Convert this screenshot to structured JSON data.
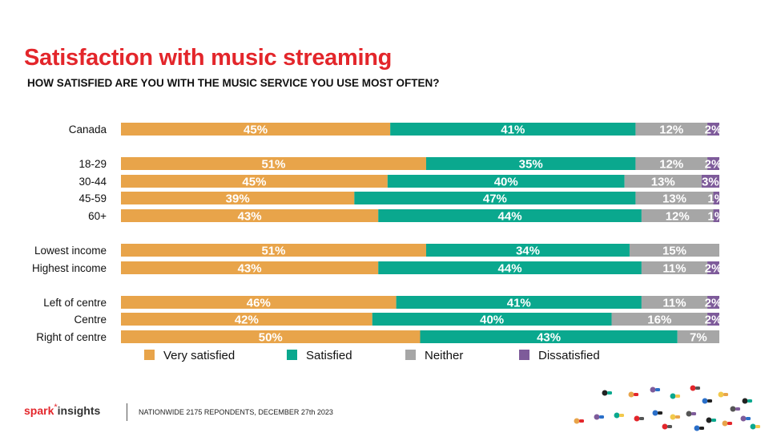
{
  "title": "Satisfaction with music streaming",
  "subtitle": "HOW SATISFIED ARE YOU WITH THE MUSIC SERVICE YOU USE MOST OFTEN?",
  "footer_note": "NATIONWIDE 2175 REPONDENTS, DECEMBER 27th 2023",
  "logo": {
    "spark": "spark",
    "star": "*",
    "insights": "insights"
  },
  "chart_data": {
    "type": "bar",
    "orientation": "horizontal",
    "stacked": true,
    "legend_position": "bottom",
    "xlim": [
      0,
      100
    ],
    "categories": [
      "Canada",
      "18-29",
      "30-44",
      "45-59",
      "60+",
      "Lowest income",
      "Highest income",
      "Left of centre",
      "Centre",
      "Right of centre"
    ],
    "series": [
      {
        "name": "Very satisfied",
        "color": "#e8a44a",
        "values": [
          45,
          51,
          45,
          39,
          43,
          51,
          43,
          46,
          42,
          50
        ]
      },
      {
        "name": "Satisfied",
        "color": "#0aa88e",
        "values": [
          41,
          35,
          40,
          47,
          44,
          34,
          44,
          41,
          40,
          43
        ]
      },
      {
        "name": "Neither",
        "color": "#a6a6a6",
        "values": [
          12,
          12,
          13,
          13,
          12,
          15,
          11,
          11,
          16,
          7
        ]
      },
      {
        "name": "Dissatisfied",
        "color": "#7e5b9a",
        "values": [
          2,
          2,
          3,
          1,
          1,
          0,
          2,
          2,
          2,
          0
        ]
      }
    ]
  }
}
